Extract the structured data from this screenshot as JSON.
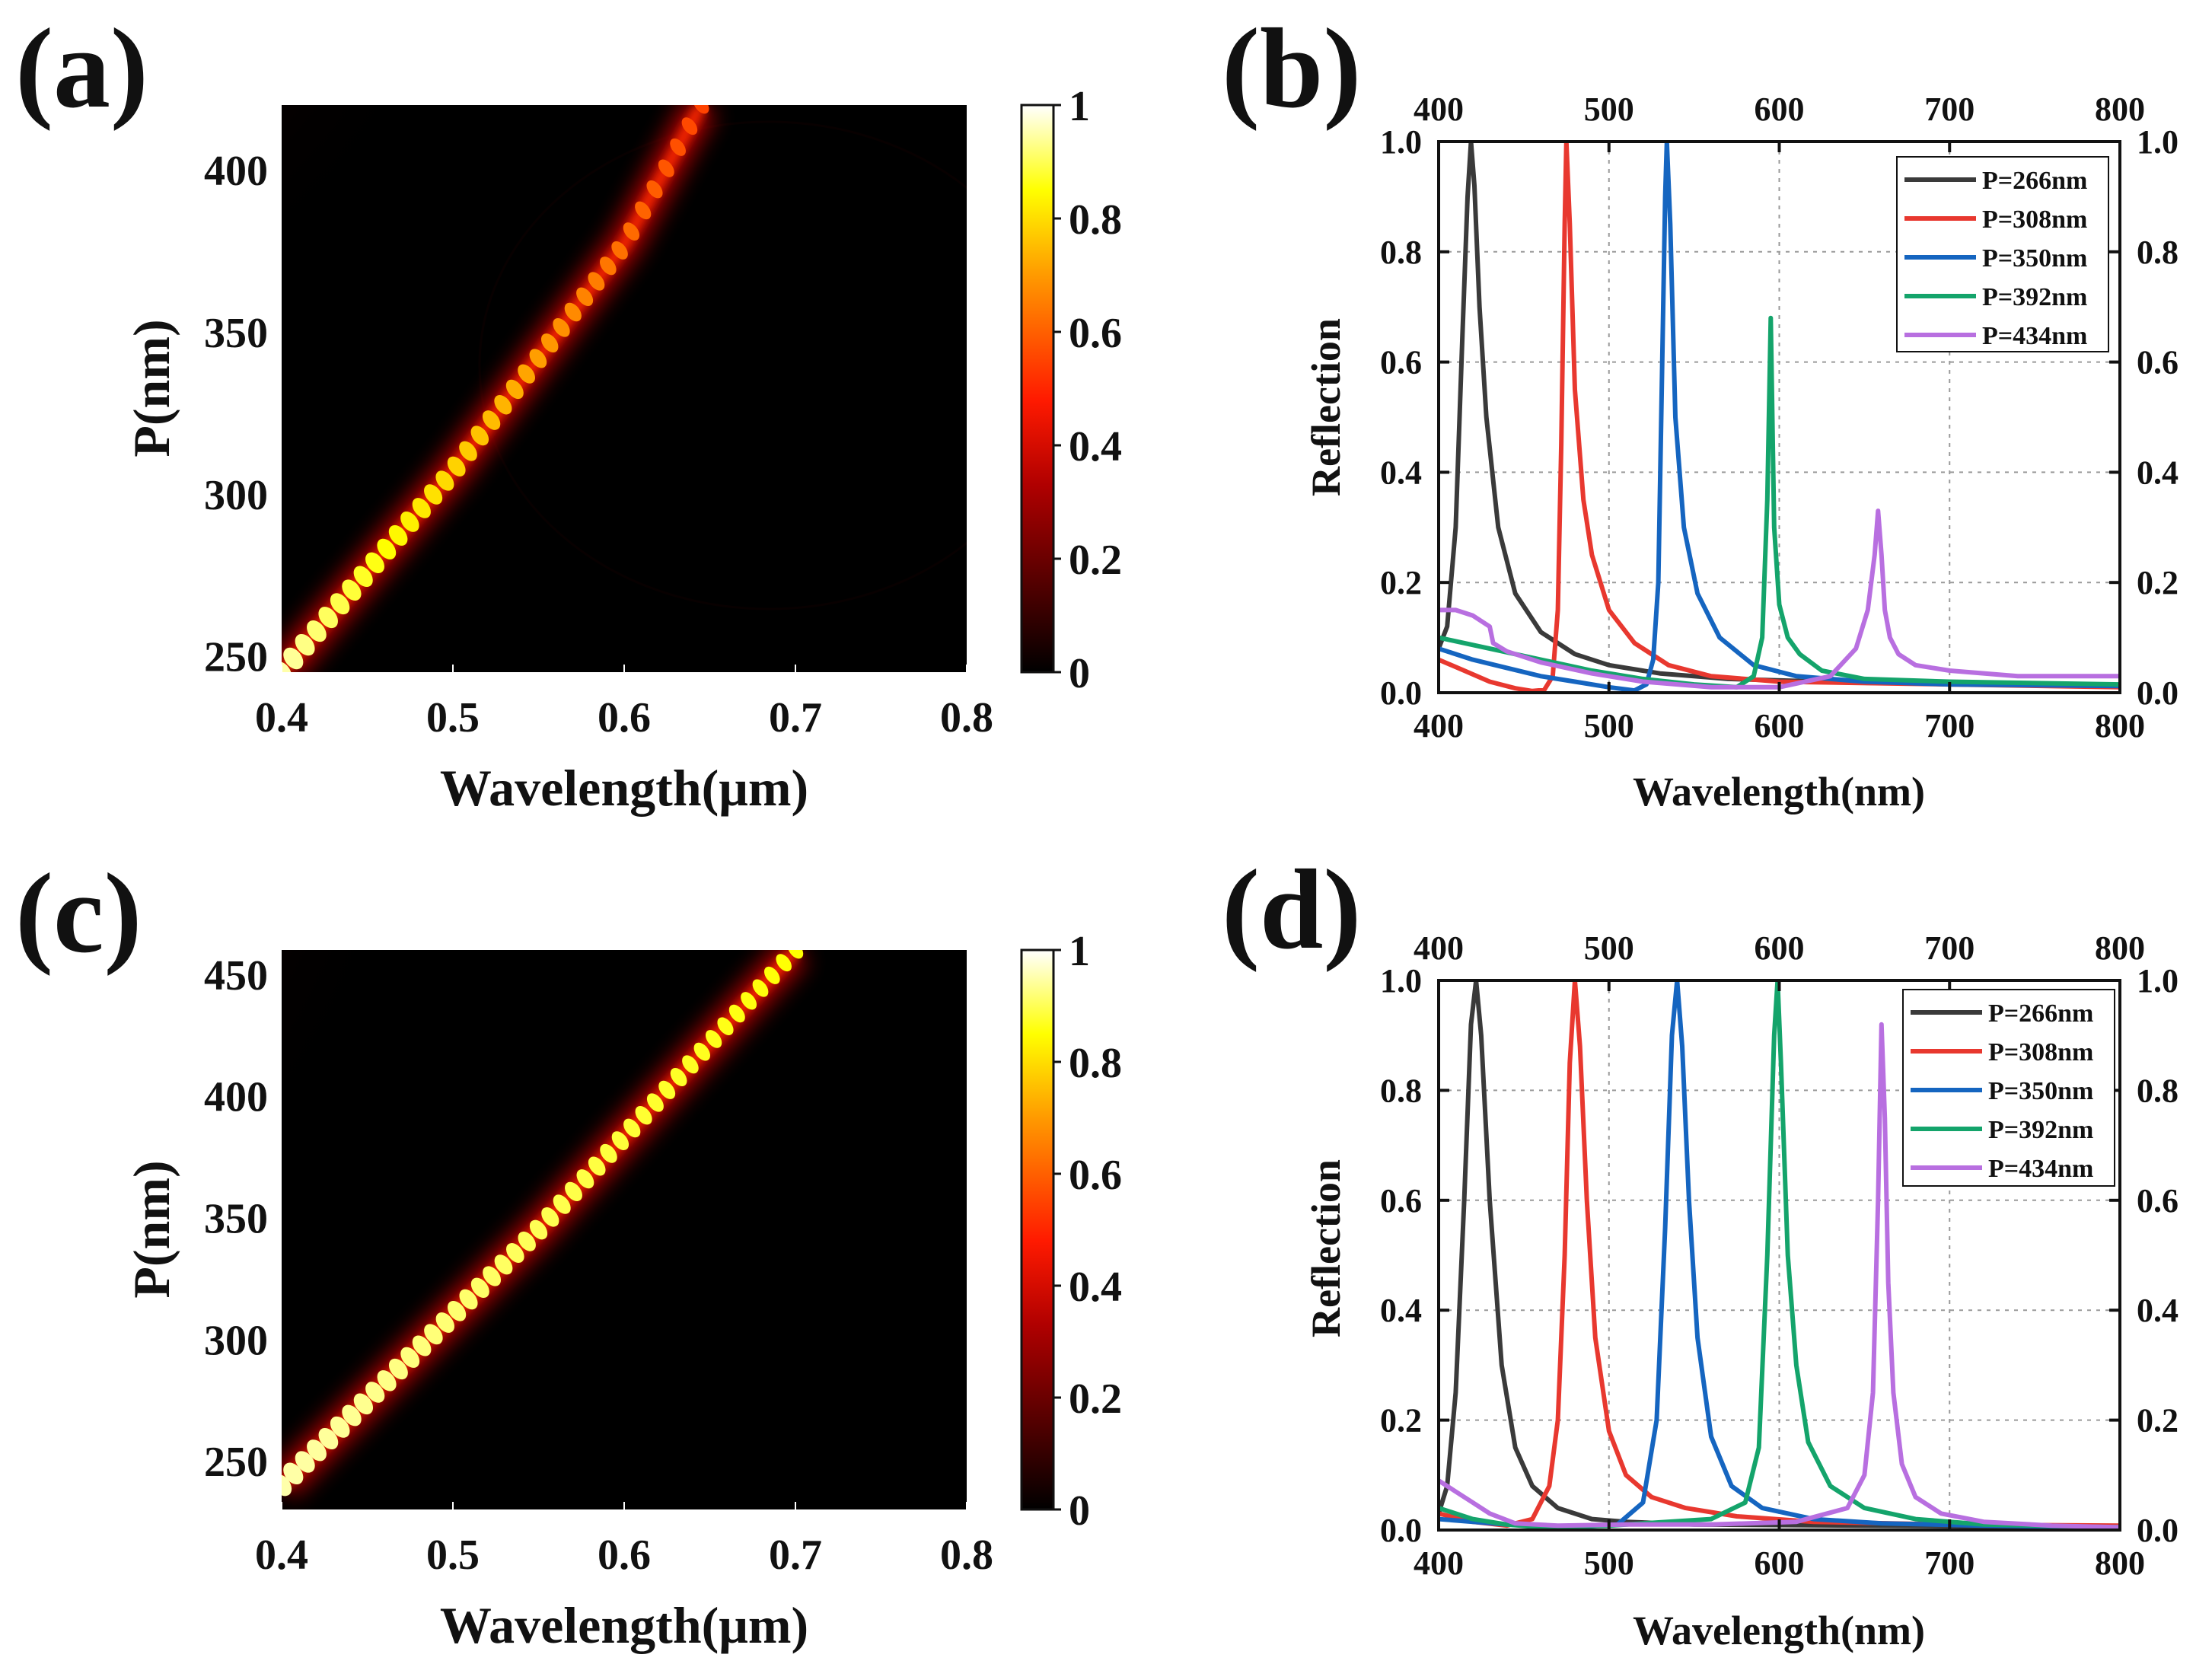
{
  "figure": {
    "background": "#ffffff"
  },
  "chart_data": [
    {
      "panel": "(a)",
      "type": "heatmap",
      "title": "",
      "xlabel": "Wavelength(μm)",
      "ylabel": "P(nm)",
      "xlim": [
        0.4,
        0.8
      ],
      "ylim": [
        245,
        420
      ],
      "xticks": [
        "0.4",
        "0.5",
        "0.6",
        "0.7",
        "0.8"
      ],
      "yticks": [
        "250",
        "300",
        "350",
        "400"
      ],
      "xtick_values": [
        0.4,
        0.5,
        0.6,
        0.7,
        0.8
      ],
      "ytick_values": [
        250,
        300,
        350,
        400
      ],
      "colorbar": {
        "range": [
          0,
          1
        ],
        "ticks": [
          "0",
          "0.2",
          "0.4",
          "0.6",
          "0.8",
          "1"
        ],
        "colormap": "hot"
      },
      "ridge": {
        "description": "resonance band",
        "points": [
          [
            0.4,
            245
          ],
          [
            0.5,
            307
          ],
          [
            0.6,
            377
          ],
          [
            0.645,
            420
          ]
        ],
        "peak_start": 0.95,
        "peak_end": 0.55,
        "segments": 36
      }
    },
    {
      "panel": "(b)",
      "type": "line",
      "xlabel": "Wavelength(nm)",
      "ylabel": "Reflection",
      "xlim": [
        400,
        800
      ],
      "ylim": [
        0,
        1.0
      ],
      "xticks": [
        "400",
        "500",
        "600",
        "700",
        "800"
      ],
      "yticks": [
        "0.0",
        "0.2",
        "0.4",
        "0.6",
        "0.8",
        "1.0"
      ],
      "xtick_values": [
        400,
        500,
        600,
        700,
        800
      ],
      "ytick_values": [
        0,
        0.2,
        0.4,
        0.6,
        0.8,
        1.0
      ],
      "grid": true,
      "legend_position": "top-right",
      "series": [
        {
          "name": "P=266nm",
          "color": "#3a3a3a",
          "x": [
            400,
            405,
            410,
            414,
            417,
            419,
            421,
            424,
            428,
            435,
            445,
            460,
            480,
            500,
            530,
            570,
            650,
            800
          ],
          "y": [
            0.08,
            0.12,
            0.3,
            0.65,
            0.9,
            1.0,
            0.92,
            0.7,
            0.5,
            0.3,
            0.18,
            0.11,
            0.07,
            0.05,
            0.035,
            0.025,
            0.018,
            0.012
          ]
        },
        {
          "name": "P=308nm",
          "color": "#e8382f",
          "x": [
            400,
            415,
            430,
            445,
            455,
            462,
            467,
            470,
            472,
            474,
            475,
            477,
            480,
            485,
            490,
            500,
            515,
            535,
            560,
            600,
            700,
            800
          ],
          "y": [
            0.06,
            0.04,
            0.02,
            0.008,
            0.003,
            0.005,
            0.03,
            0.15,
            0.45,
            0.85,
            1.0,
            0.85,
            0.55,
            0.35,
            0.25,
            0.15,
            0.09,
            0.05,
            0.03,
            0.02,
            0.015,
            0.01
          ]
        },
        {
          "name": "P=350nm",
          "color": "#1565c0",
          "x": [
            400,
            420,
            440,
            460,
            480,
            500,
            515,
            522,
            526,
            529,
            531,
            533,
            534,
            536,
            539,
            544,
            552,
            565,
            585,
            610,
            650,
            700,
            800
          ],
          "y": [
            0.08,
            0.06,
            0.045,
            0.03,
            0.02,
            0.01,
            0.004,
            0.015,
            0.06,
            0.2,
            0.55,
            0.9,
            1.0,
            0.85,
            0.5,
            0.3,
            0.18,
            0.1,
            0.05,
            0.03,
            0.02,
            0.015,
            0.012
          ]
        },
        {
          "name": "P=392nm",
          "color": "#14a46b",
          "x": [
            400,
            430,
            460,
            490,
            520,
            550,
            575,
            585,
            590,
            593,
            595,
            597,
            600,
            605,
            612,
            625,
            650,
            700,
            800
          ],
          "y": [
            0.1,
            0.08,
            0.06,
            0.04,
            0.025,
            0.015,
            0.01,
            0.03,
            0.1,
            0.35,
            0.68,
            0.3,
            0.16,
            0.1,
            0.07,
            0.04,
            0.025,
            0.02,
            0.015
          ]
        },
        {
          "name": "P=434nm",
          "color": "#b86fe0",
          "x": [
            400,
            410,
            420,
            430,
            432,
            440,
            460,
            490,
            520,
            560,
            600,
            630,
            645,
            652,
            656,
            658,
            660,
            662,
            665,
            670,
            680,
            700,
            740,
            800
          ],
          "y": [
            0.15,
            0.15,
            0.14,
            0.12,
            0.09,
            0.075,
            0.055,
            0.035,
            0.02,
            0.01,
            0.01,
            0.03,
            0.08,
            0.15,
            0.25,
            0.33,
            0.25,
            0.15,
            0.1,
            0.07,
            0.05,
            0.04,
            0.03,
            0.03
          ]
        }
      ]
    },
    {
      "panel": "(c)",
      "type": "heatmap",
      "title": "",
      "xlabel": "Wavelength(μm)",
      "ylabel": "P(nm)",
      "xlim": [
        0.4,
        0.8
      ],
      "ylim": [
        230,
        460
      ],
      "xticks": [
        "0.4",
        "0.5",
        "0.6",
        "0.7",
        "0.8"
      ],
      "yticks": [
        "250",
        "300",
        "350",
        "400",
        "450"
      ],
      "xtick_values": [
        0.4,
        0.5,
        0.6,
        0.7,
        0.8
      ],
      "ytick_values": [
        250,
        300,
        350,
        400,
        450
      ],
      "colorbar": {
        "range": [
          0,
          1
        ],
        "ticks": [
          "0",
          "0.2",
          "0.4",
          "0.6",
          "0.8",
          "1"
        ],
        "colormap": "hot"
      },
      "ridge": {
        "description": "resonance band",
        "points": [
          [
            0.4,
            240
          ],
          [
            0.55,
            345
          ],
          [
            0.7,
            460
          ]
        ],
        "peak_start": 0.95,
        "peak_end": 0.85,
        "segments": 44
      }
    },
    {
      "panel": "(d)",
      "type": "line",
      "xlabel": "Wavelength(nm)",
      "ylabel": "Reflection",
      "xlim": [
        400,
        800
      ],
      "ylim": [
        0,
        1.0
      ],
      "xticks": [
        "400",
        "500",
        "600",
        "700",
        "800"
      ],
      "yticks": [
        "0.0",
        "0.2",
        "0.4",
        "0.6",
        "0.8",
        "1.0"
      ],
      "xtick_values": [
        400,
        500,
        600,
        700,
        800
      ],
      "ytick_values": [
        0,
        0.2,
        0.4,
        0.6,
        0.8,
        1.0
      ],
      "grid": true,
      "legend_position": "top-right",
      "series": [
        {
          "name": "P=266nm",
          "color": "#3a3a3a",
          "x": [
            400,
            405,
            410,
            415,
            419,
            422,
            425,
            430,
            437,
            445,
            455,
            470,
            490,
            510,
            550,
            650,
            800
          ],
          "y": [
            0.03,
            0.08,
            0.25,
            0.6,
            0.92,
            1.0,
            0.9,
            0.6,
            0.3,
            0.15,
            0.08,
            0.04,
            0.02,
            0.015,
            0.01,
            0.008,
            0.005
          ]
        },
        {
          "name": "P=308nm",
          "color": "#e8382f",
          "x": [
            400,
            420,
            440,
            455,
            465,
            470,
            474,
            477,
            480,
            483,
            487,
            492,
            500,
            510,
            525,
            545,
            575,
            620,
            700,
            800
          ],
          "y": [
            0.03,
            0.015,
            0.008,
            0.02,
            0.08,
            0.2,
            0.5,
            0.85,
            1.0,
            0.88,
            0.6,
            0.35,
            0.18,
            0.1,
            0.06,
            0.04,
            0.025,
            0.015,
            0.01,
            0.008
          ]
        },
        {
          "name": "P=350nm",
          "color": "#1565c0",
          "x": [
            400,
            440,
            480,
            505,
            520,
            528,
            533,
            537,
            540,
            543,
            547,
            552,
            560,
            572,
            590,
            620,
            660,
            720,
            800
          ],
          "y": [
            0.02,
            0.01,
            0.005,
            0.01,
            0.05,
            0.2,
            0.55,
            0.9,
            1.0,
            0.88,
            0.6,
            0.35,
            0.17,
            0.08,
            0.04,
            0.02,
            0.012,
            0.008,
            0.005
          ]
        },
        {
          "name": "P=392nm",
          "color": "#14a46b",
          "x": [
            400,
            420,
            440,
            460,
            500,
            560,
            580,
            588,
            593,
            597,
            599,
            601,
            605,
            610,
            617,
            630,
            650,
            680,
            720,
            800
          ],
          "y": [
            0.04,
            0.02,
            0.01,
            0.005,
            0.008,
            0.02,
            0.05,
            0.15,
            0.5,
            0.9,
            1.0,
            0.85,
            0.5,
            0.3,
            0.16,
            0.08,
            0.04,
            0.02,
            0.01,
            0.005
          ]
        },
        {
          "name": "P=434nm",
          "color": "#b86fe0",
          "x": [
            400,
            410,
            420,
            430,
            445,
            470,
            510,
            560,
            610,
            640,
            650,
            655,
            658,
            660,
            662,
            664,
            667,
            672,
            680,
            695,
            720,
            760,
            800
          ],
          "y": [
            0.09,
            0.07,
            0.05,
            0.03,
            0.012,
            0.008,
            0.01,
            0.01,
            0.015,
            0.04,
            0.1,
            0.25,
            0.6,
            0.92,
            0.75,
            0.45,
            0.25,
            0.12,
            0.06,
            0.03,
            0.015,
            0.008,
            0.005
          ]
        }
      ]
    }
  ]
}
